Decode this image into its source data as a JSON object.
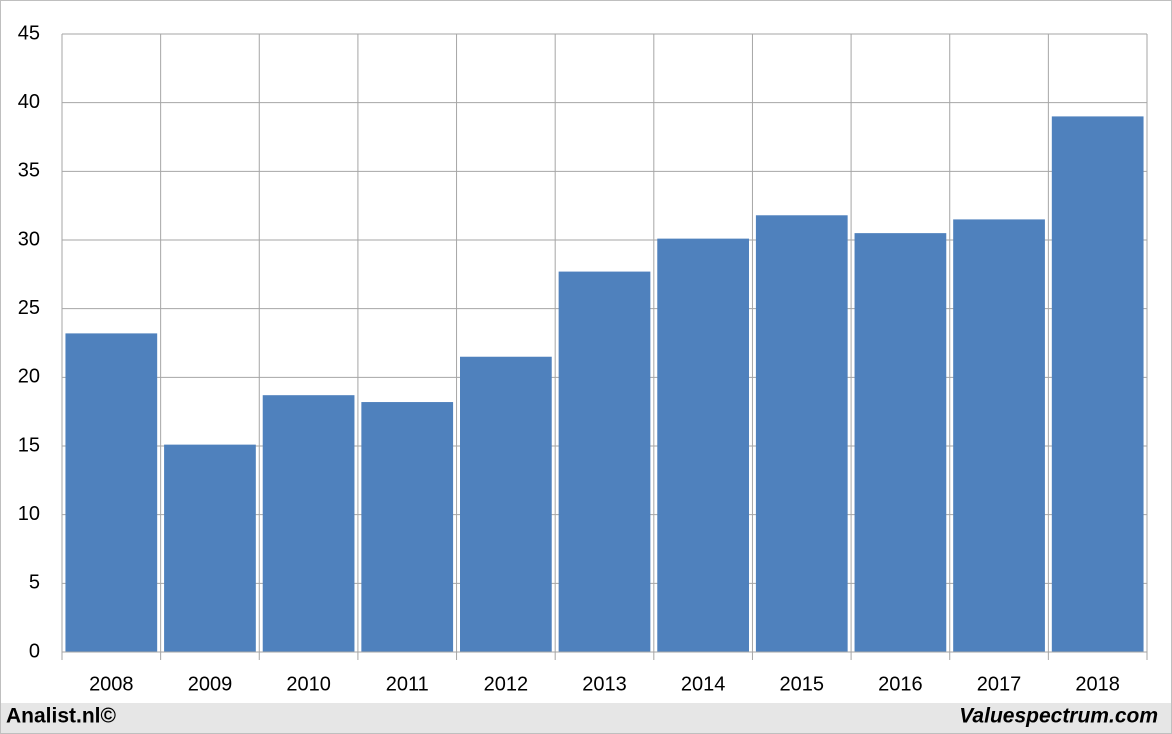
{
  "chart_data": {
    "type": "bar",
    "categories": [
      "2008",
      "2009",
      "2010",
      "2011",
      "2012",
      "2013",
      "2014",
      "2015",
      "2016",
      "2017",
      "2018"
    ],
    "values": [
      23.2,
      15.1,
      18.7,
      18.2,
      21.5,
      27.7,
      30.1,
      31.8,
      30.5,
      31.5,
      39.0
    ],
    "color": "#4f81bd",
    "ylim": [
      0,
      45
    ],
    "yticks": [
      0,
      5,
      10,
      15,
      20,
      25,
      30,
      35,
      40,
      45
    ],
    "grid": true,
    "footer_left": "Analist.nl©",
    "footer_right": "Valuespectrum.com"
  }
}
